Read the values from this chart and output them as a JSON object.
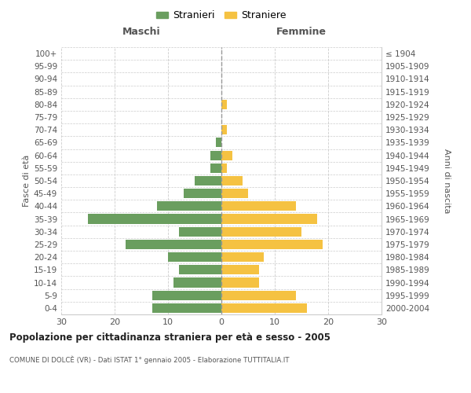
{
  "age_groups": [
    "0-4",
    "5-9",
    "10-14",
    "15-19",
    "20-24",
    "25-29",
    "30-34",
    "35-39",
    "40-44",
    "45-49",
    "50-54",
    "55-59",
    "60-64",
    "65-69",
    "70-74",
    "75-79",
    "80-84",
    "85-89",
    "90-94",
    "95-99",
    "100+"
  ],
  "birth_years": [
    "2000-2004",
    "1995-1999",
    "1990-1994",
    "1985-1989",
    "1980-1984",
    "1975-1979",
    "1970-1974",
    "1965-1969",
    "1960-1964",
    "1955-1959",
    "1950-1954",
    "1945-1949",
    "1940-1944",
    "1935-1939",
    "1930-1934",
    "1925-1929",
    "1920-1924",
    "1915-1919",
    "1910-1914",
    "1905-1909",
    "≤ 1904"
  ],
  "maschi": [
    13,
    13,
    9,
    8,
    10,
    18,
    8,
    25,
    12,
    7,
    5,
    2,
    2,
    1,
    0,
    0,
    0,
    0,
    0,
    0,
    0
  ],
  "femmine": [
    16,
    14,
    7,
    7,
    8,
    19,
    15,
    18,
    14,
    5,
    4,
    1,
    2,
    0,
    1,
    0,
    1,
    0,
    0,
    0,
    0
  ],
  "color_maschi": "#6a9e5f",
  "color_femmine": "#f5c242",
  "title_main": "Popolazione per cittadinanza straniera per età e sesso - 2005",
  "title_sub": "COMUNE DI DOLCÈ (VR) - Dati ISTAT 1° gennaio 2005 - Elaborazione TUTTITALIA.IT",
  "label_maschi": "Maschi",
  "label_femmine": "Femmine",
  "ylabel_left": "Fasce di età",
  "ylabel_right": "Anni di nascita",
  "legend_maschi": "Stranieri",
  "legend_femmine": "Straniere",
  "xlim": 30,
  "xtick_values": [
    -30,
    -20,
    -10,
    0,
    10,
    20,
    30
  ],
  "xtick_labels": [
    "30",
    "20",
    "10",
    "0",
    "10",
    "20",
    "30"
  ],
  "background_color": "#ffffff",
  "grid_color": "#cccccc",
  "bar_height": 0.75
}
